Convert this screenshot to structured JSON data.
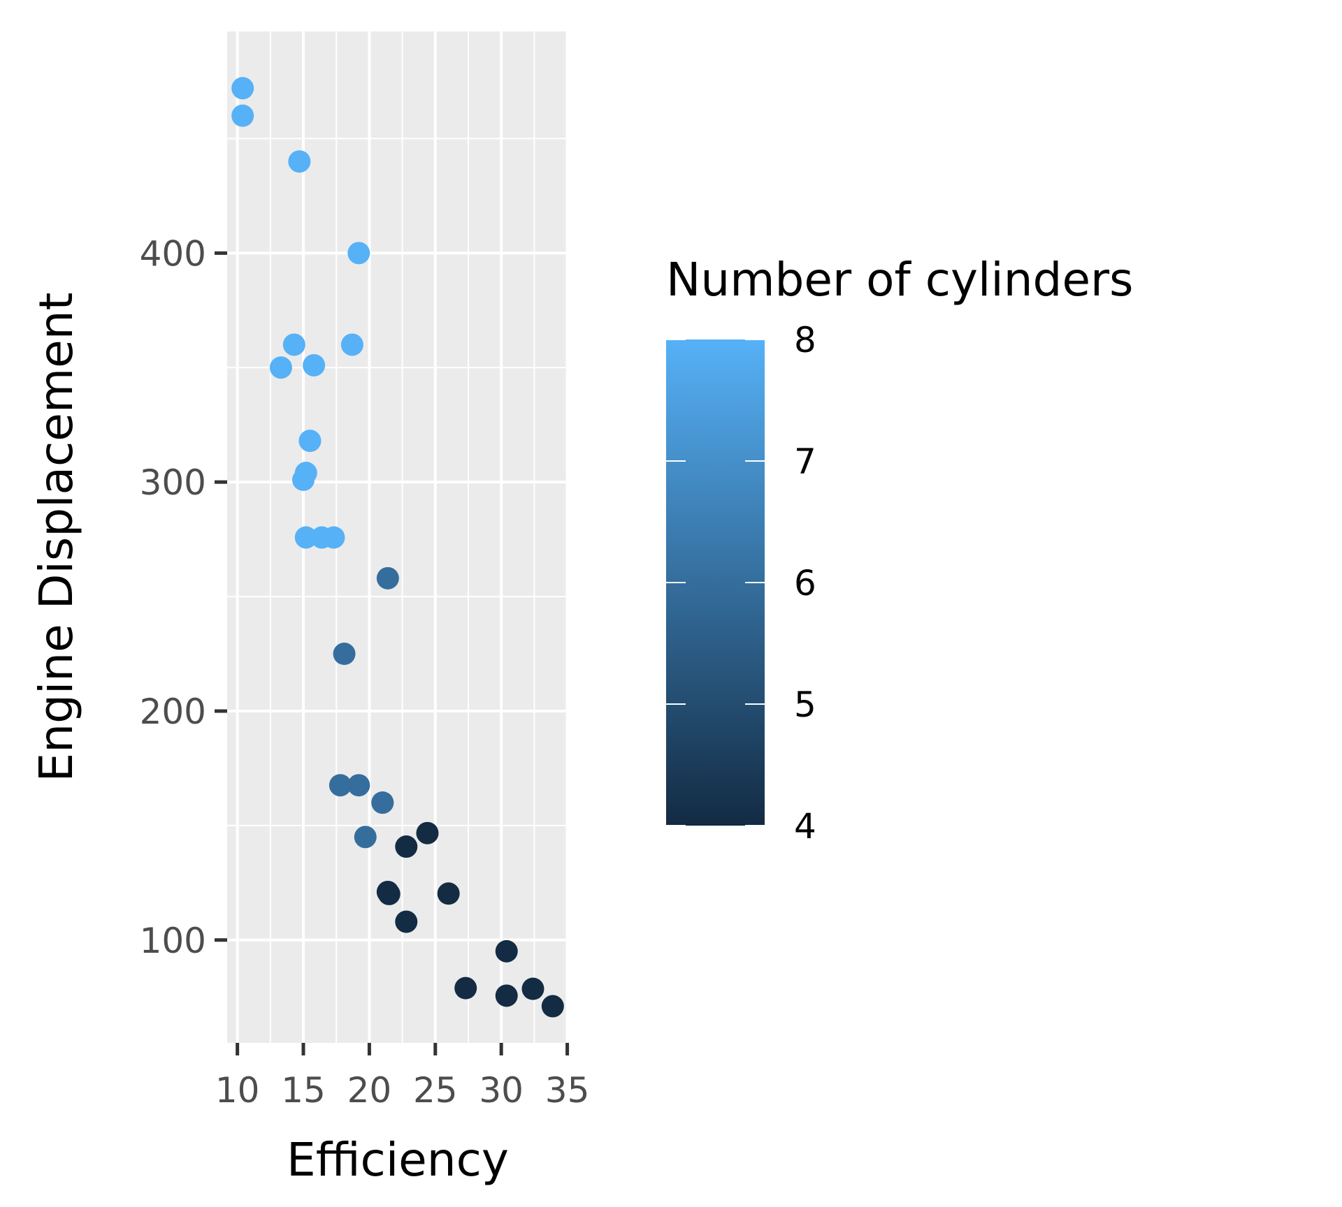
{
  "chart_data": {
    "type": "scatter",
    "title": "",
    "xlabel": "Efficiency",
    "ylabel": "Engine Displacement",
    "xlim": [
      9.225,
      35.075
    ],
    "ylim": [
      55.1,
      496.8
    ],
    "x_ticks": [
      10,
      15,
      20,
      25,
      30,
      35
    ],
    "y_ticks": [
      100,
      200,
      300,
      400
    ],
    "grid": true,
    "panel_background": "#ebebeb",
    "grid_color": "#ffffff",
    "legend": {
      "title": "Number of cylinders",
      "placement": "right",
      "ticks": [
        4,
        5,
        6,
        7,
        8
      ],
      "range": [
        4,
        8
      ],
      "color_low": "#132b43",
      "color_high": "#56b1f7"
    },
    "series": [
      {
        "x": [
          21.0,
          21.0,
          22.8,
          21.4,
          18.7,
          18.1,
          14.3,
          24.4,
          22.8,
          19.2,
          17.8,
          16.4,
          17.3,
          15.2,
          10.4,
          10.4,
          14.7,
          32.4,
          30.4,
          33.9,
          21.5,
          15.5,
          15.2,
          13.3,
          19.2,
          27.3,
          26.0,
          30.4,
          15.8,
          19.7,
          15.0,
          21.4
        ],
        "y": [
          160,
          160,
          108,
          258,
          360,
          225,
          360,
          146.7,
          140.8,
          167.6,
          167.6,
          275.8,
          275.8,
          275.8,
          472,
          460,
          440,
          78.7,
          75.7,
          71.1,
          120.1,
          318,
          304,
          350,
          400,
          79,
          120.3,
          95.1,
          351,
          145,
          301,
          121
        ],
        "cyl": [
          6,
          6,
          4,
          6,
          8,
          6,
          8,
          4,
          4,
          6,
          6,
          8,
          8,
          8,
          8,
          8,
          8,
          4,
          4,
          4,
          4,
          8,
          8,
          8,
          8,
          4,
          4,
          4,
          8,
          6,
          8,
          4
        ]
      }
    ]
  }
}
